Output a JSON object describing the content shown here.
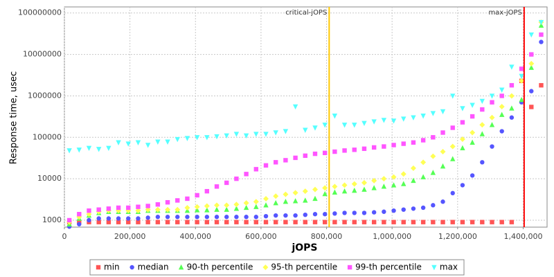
{
  "chart_data": {
    "type": "scatter",
    "y_label": "Response time, usec",
    "x_label": "jOPS",
    "yscale": "log",
    "grid": true,
    "legend": "bottom",
    "xlim": [
      0,
      1473000
    ],
    "ylim": [
      680,
      140000000
    ],
    "xticks": [
      0,
      {
        "value": 200000,
        "label": "200,000"
      },
      {
        "value": 400000,
        "label": "400,000"
      },
      {
        "value": 600000,
        "label": "600,000"
      },
      {
        "value": 800000,
        "label": "800,000"
      },
      {
        "value": 1000000,
        "label": "1,000,000"
      },
      {
        "value": 1200000,
        "label": "1,200,000"
      },
      {
        "value": 1400000,
        "label": "1,400,000"
      }
    ],
    "yticks": [
      1000,
      10000,
      100000,
      1000000,
      10000000,
      100000000
    ],
    "annotations": [
      {
        "label": "critical-jOPS",
        "x": 808000,
        "color": "#ffc800"
      },
      {
        "label": "max-jOPS",
        "x": 1403000,
        "color": "#ff0000"
      }
    ],
    "x": [
      15000,
      45000,
      75000,
      105000,
      135000,
      165000,
      195000,
      225000,
      255000,
      285000,
      315000,
      345000,
      375000,
      405000,
      435000,
      465000,
      495000,
      525000,
      555000,
      585000,
      615000,
      645000,
      675000,
      705000,
      735000,
      765000,
      795000,
      825000,
      855000,
      885000,
      915000,
      945000,
      975000,
      1005000,
      1035000,
      1065000,
      1095000,
      1125000,
      1155000,
      1185000,
      1215000,
      1245000,
      1275000,
      1305000,
      1335000,
      1365000,
      1395000,
      1425000,
      1455000
    ],
    "series": [
      {
        "name": "min",
        "color": "#ff5555",
        "marker": "square",
        "values": [
          900,
          900,
          900,
          900,
          900,
          900,
          900,
          900,
          900,
          900,
          900,
          900,
          900,
          900,
          900,
          900,
          900,
          900,
          900,
          900,
          900,
          900,
          900,
          900,
          900,
          900,
          900,
          900,
          900,
          900,
          900,
          900,
          900,
          900,
          900,
          900,
          900,
          900,
          900,
          900,
          900,
          900,
          900,
          900,
          900,
          900,
          2300000,
          540000,
          1800000
        ]
      },
      {
        "name": "median",
        "color": "#5555ff",
        "marker": "circle",
        "values": [
          700,
          800,
          1000,
          1100,
          1100,
          1100,
          1100,
          1100,
          1150,
          1200,
          1200,
          1200,
          1200,
          1200,
          1200,
          1200,
          1200,
          1200,
          1200,
          1200,
          1250,
          1300,
          1300,
          1300,
          1350,
          1400,
          1400,
          1450,
          1500,
          1500,
          1500,
          1550,
          1600,
          1700,
          1800,
          1900,
          2000,
          2300,
          2800,
          4500,
          7000,
          12000,
          25000,
          60000,
          140000,
          300000,
          700000,
          1300000,
          20000000
        ]
      },
      {
        "name": "90-th percentile",
        "color": "#55ff55",
        "marker": "triangle-up",
        "values": [
          800,
          1100,
          1300,
          1500,
          1600,
          1600,
          1600,
          1600,
          1700,
          1700,
          1700,
          1700,
          1700,
          1750,
          1750,
          1800,
          1800,
          1900,
          2000,
          2100,
          2300,
          2600,
          2800,
          2900,
          3000,
          3300,
          4300,
          4700,
          5000,
          5200,
          5500,
          6000,
          6500,
          7000,
          7500,
          9000,
          11000,
          14000,
          20000,
          30000,
          55000,
          75000,
          120000,
          200000,
          350000,
          500000,
          800000,
          4800000,
          50000000
        ]
      },
      {
        "name": "95-th percentile",
        "color": "#ffff55",
        "marker": "diamond",
        "values": [
          900,
          1200,
          1400,
          1600,
          1700,
          1700,
          1700,
          1700,
          1800,
          1800,
          1800,
          1800,
          2000,
          2100,
          2200,
          2300,
          2300,
          2400,
          2600,
          2800,
          3300,
          3800,
          4200,
          4600,
          5000,
          5500,
          6000,
          6500,
          7000,
          7500,
          8000,
          9000,
          10000,
          11000,
          13000,
          18000,
          25000,
          35000,
          45000,
          60000,
          90000,
          130000,
          200000,
          300000,
          550000,
          1000000,
          2300000,
          6000000,
          60000000
        ]
      },
      {
        "name": "99-th percentile",
        "color": "#ff55ff",
        "marker": "square",
        "values": [
          1000,
          1400,
          1700,
          1800,
          1900,
          2000,
          2000,
          2100,
          2200,
          2400,
          2700,
          3000,
          3300,
          4000,
          5000,
          6500,
          8000,
          10000,
          13000,
          17000,
          21000,
          25000,
          28000,
          32000,
          36000,
          40000,
          42000,
          45000,
          48000,
          50000,
          53000,
          57000,
          60000,
          65000,
          70000,
          75000,
          85000,
          100000,
          130000,
          170000,
          230000,
          320000,
          470000,
          700000,
          1000000,
          1800000,
          4500000,
          10000000,
          30000000
        ]
      },
      {
        "name": "max",
        "color": "#55ffff",
        "marker": "triangle-down",
        "values": [
          48000,
          50000,
          55000,
          52000,
          55000,
          75000,
          70000,
          75000,
          65000,
          78000,
          78000,
          90000,
          95000,
          100000,
          100000,
          105000,
          110000,
          120000,
          110000,
          120000,
          120000,
          130000,
          140000,
          550000,
          150000,
          170000,
          200000,
          330000,
          200000,
          200000,
          220000,
          240000,
          260000,
          250000,
          280000,
          300000,
          330000,
          380000,
          420000,
          1000000,
          500000,
          600000,
          750000,
          1000000,
          1400000,
          5000000,
          3000000,
          30000000,
          60000000
        ]
      }
    ]
  }
}
